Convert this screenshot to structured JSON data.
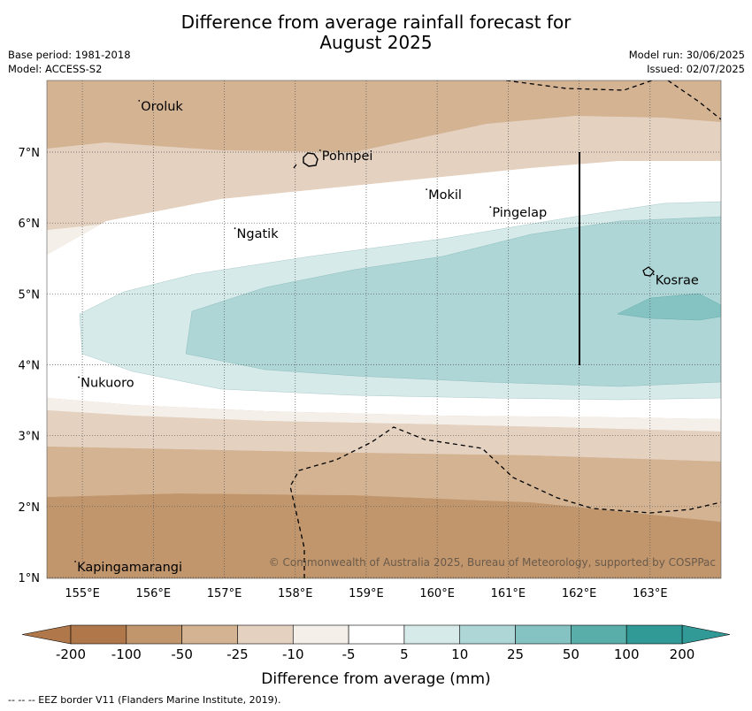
{
  "title_line1": "Difference from average rainfall forecast for",
  "title_line2": "August 2025",
  "meta": {
    "base_period": "Base period: 1981-2018",
    "model": "Model: ACCESS-S2",
    "model_run": "Model run: 30/06/2025",
    "issued": "Issued: 02/07/2025"
  },
  "map": {
    "lon_range": [
      154.5,
      164.0
    ],
    "lat_range": [
      1.0,
      8.0
    ],
    "lon_ticks": [
      155,
      156,
      157,
      158,
      159,
      160,
      161,
      162,
      163
    ],
    "lat_ticks": [
      1,
      2,
      3,
      4,
      5,
      6,
      7
    ],
    "lon_tick_labels": [
      "155°E",
      "156°E",
      "157°E",
      "158°E",
      "159°E",
      "160°E",
      "161°E",
      "162°E",
      "163°E"
    ],
    "lat_tick_labels": [
      "1°N",
      "2°N",
      "3°N",
      "4°N",
      "5°N",
      "6°N",
      "7°N"
    ],
    "places": [
      {
        "name": "Oroluk",
        "lon": 155.8,
        "lat": 7.65
      },
      {
        "name": "Pohnpei",
        "lon": 158.35,
        "lat": 6.95
      },
      {
        "name": "Mokil",
        "lon": 159.85,
        "lat": 6.4
      },
      {
        "name": "Pingelap",
        "lon": 160.75,
        "lat": 6.15
      },
      {
        "name": "Ngatik",
        "lon": 157.15,
        "lat": 5.85
      },
      {
        "name": "Kosrae",
        "lon": 163.05,
        "lat": 5.2
      },
      {
        "name": "Nukuoro",
        "lon": 154.95,
        "lat": 3.75
      },
      {
        "name": "Kapingamarangi",
        "lon": 154.9,
        "lat": 1.15
      }
    ],
    "copyright": "© Commonwealth of Australia 2025, Bureau of Meteorology, supported by COSPPac"
  },
  "colorbar": {
    "labels": [
      "-200",
      "-100",
      "-50",
      "-25",
      "-10",
      "-5",
      "5",
      "10",
      "25",
      "50",
      "100",
      "200"
    ],
    "colors": [
      "#b0784a",
      "#c1966c",
      "#d3b392",
      "#e4d1c0",
      "#f4efe9",
      "#ffffff",
      "#d7eaea",
      "#afd6d6",
      "#84c3c2",
      "#59aeaa",
      "#319996"
    ],
    "extend_low": "#b0784a",
    "extend_high": "#319996",
    "label": "Difference from average (mm)"
  },
  "footnote": "--  --  -- EEZ border V11 (Flanders Marine Institute, 2019)."
}
